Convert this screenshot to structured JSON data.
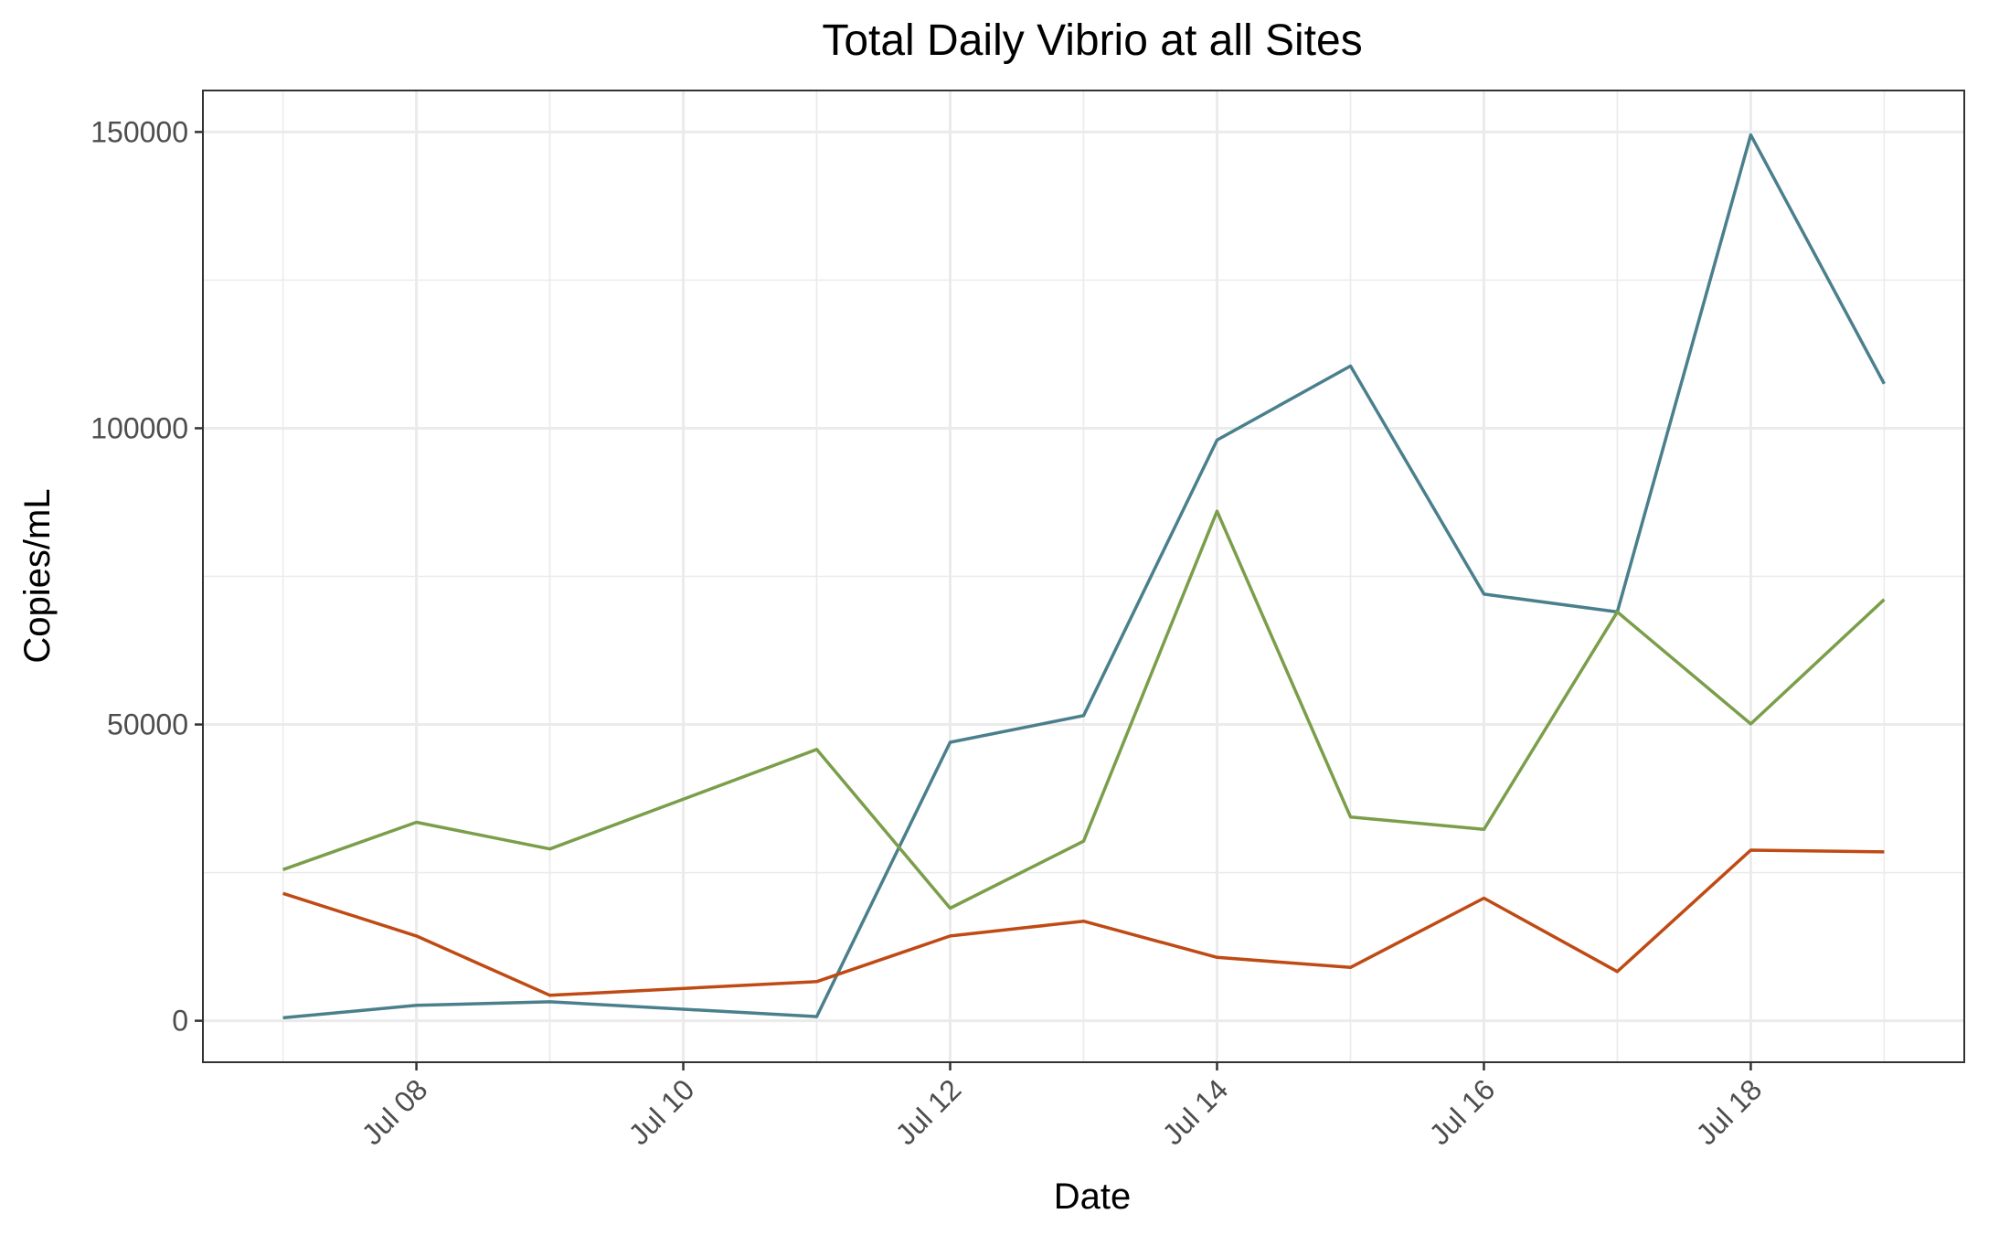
{
  "chart_data": {
    "type": "line",
    "title": "Total Daily Vibrio at all Sites",
    "xlabel": "Date",
    "ylabel": "Copies/mL",
    "x": [
      "2023-07-07",
      "2023-07-08",
      "2023-07-09",
      "2023-07-11",
      "2023-07-12",
      "2023-07-13",
      "2023-07-14",
      "2023-07-15",
      "2023-07-16",
      "2023-07-17",
      "2023-07-18",
      "2023-07-19"
    ],
    "x_tick_labels": [
      "Jul 08",
      "Jul 10",
      "Jul 12",
      "Jul 14",
      "Jul 16",
      "Jul 18"
    ],
    "x_tick_dates": [
      "2023-07-08",
      "2023-07-10",
      "2023-07-12",
      "2023-07-14",
      "2023-07-16",
      "2023-07-18"
    ],
    "y_ticks": [
      0,
      50000,
      100000,
      150000
    ],
    "y_tick_labels": [
      "0",
      "50000",
      "100000",
      "150000"
    ],
    "xlim": [
      "2023-07-06T09:36",
      "2023-07-19T14:24"
    ],
    "ylim": [
      -7000,
      157000
    ],
    "grid": true,
    "legend": "none",
    "series": [
      {
        "color": "#4a7f8c",
        "values": [
          500,
          2600,
          3200,
          700,
          47000,
          51500,
          98000,
          110500,
          72000,
          69000,
          149500,
          107500
        ]
      },
      {
        "color": "#7a9e4a",
        "values": [
          25500,
          33500,
          29000,
          45800,
          19000,
          30300,
          86000,
          34400,
          32300,
          69000,
          50100,
          71100
        ]
      },
      {
        "color": "#bf4a14",
        "values": [
          21500,
          14300,
          4300,
          6600,
          14300,
          16800,
          10700,
          9000,
          20700,
          8300,
          28800,
          28500
        ]
      }
    ]
  }
}
